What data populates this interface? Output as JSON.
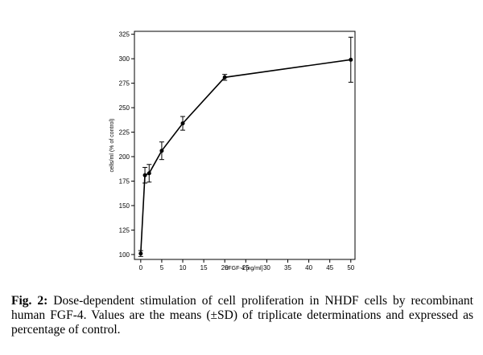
{
  "chart_data": {
    "type": "line",
    "title": "",
    "xlabel": "hFGF-4 [ng/ml]",
    "ylabel": "cells/ml (% of control)",
    "xlim": [
      -1.5,
      51
    ],
    "ylim": [
      95,
      328
    ],
    "x_ticks": [
      0,
      5,
      10,
      15,
      20,
      25,
      30,
      35,
      40,
      45,
      50
    ],
    "y_ticks": [
      100,
      125,
      150,
      175,
      200,
      225,
      250,
      275,
      300,
      325
    ],
    "series": [
      {
        "name": "cells/ml",
        "x": [
          0,
          1,
          2,
          5,
          10,
          20,
          50
        ],
        "y": [
          101,
          181,
          183,
          206,
          234,
          281,
          299
        ],
        "sd": [
          3,
          8,
          9,
          9,
          7,
          3,
          23
        ]
      }
    ],
    "grid": false,
    "legend": "none"
  },
  "caption": {
    "label": "Fig. 2:",
    "text": " Dose-dependent stimulation of cell proliferation in NHDF cells by recombinant human FGF-4. Values are the means (±SD) of triplicate determinations and expressed as percentage of control."
  },
  "colors": {
    "line": "#000000",
    "background": "#ffffff"
  }
}
